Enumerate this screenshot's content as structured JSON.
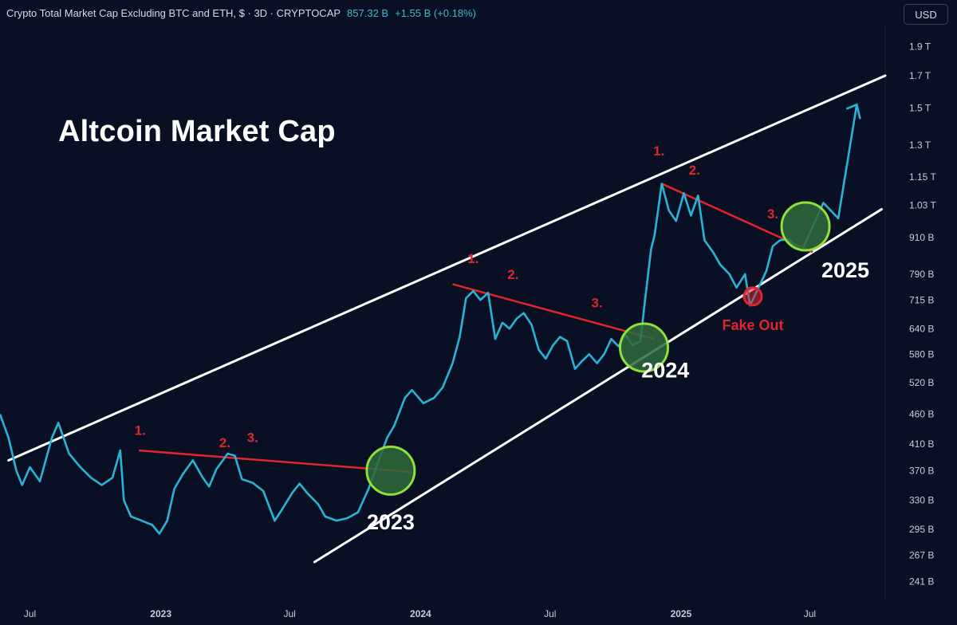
{
  "header": {
    "symbol": "Crypto Total Market Cap Excluding BTC and ETH, $ · 3D · CRYPTOCAP",
    "price": "857.32 B",
    "change": "+1.55 B (+0.18%)"
  },
  "currency_button": "USD",
  "colors": {
    "background": "#0a1023",
    "price_line": "#2bb3d6",
    "channel": "#ffffff",
    "resistance": "#e02531",
    "green_circle_fill": "#2f6b3c",
    "green_circle_stroke": "#8ee03a",
    "red_circle": "#e02531",
    "axis_text": "#c9ced9"
  },
  "chart_data": {
    "type": "line",
    "title": "Altcoin Market Cap",
    "y_scale": "log",
    "ylim": [
      225,
      2050
    ],
    "y_ticks": [
      {
        "value": 1900,
        "label": "1.9 T"
      },
      {
        "value": 1700,
        "label": "1.7 T"
      },
      {
        "value": 1500,
        "label": "1.5 T"
      },
      {
        "value": 1300,
        "label": "1.3 T"
      },
      {
        "value": 1150,
        "label": "1.15 T"
      },
      {
        "value": 1030,
        "label": "1.03 T"
      },
      {
        "value": 910,
        "label": "910 B"
      },
      {
        "value": 790,
        "label": "790 B"
      },
      {
        "value": 715,
        "label": "715 B"
      },
      {
        "value": 640,
        "label": "640 B"
      },
      {
        "value": 580,
        "label": "580 B"
      },
      {
        "value": 520,
        "label": "520 B"
      },
      {
        "value": 460,
        "label": "460 B"
      },
      {
        "value": 410,
        "label": "410 B"
      },
      {
        "value": 370,
        "label": "370 B"
      },
      {
        "value": 330,
        "label": "330 B"
      },
      {
        "value": 295,
        "label": "295 B"
      },
      {
        "value": 267,
        "label": "267 B"
      },
      {
        "value": 241,
        "label": "241 B"
      }
    ],
    "xlim": [
      "2022-05-20",
      "2025-10-15"
    ],
    "x_ticks": [
      {
        "date": "2022-07-01",
        "label": "Jul"
      },
      {
        "date": "2023-01-01",
        "label": "2023"
      },
      {
        "date": "2023-07-01",
        "label": "Jul"
      },
      {
        "date": "2024-01-01",
        "label": "2024"
      },
      {
        "date": "2024-07-01",
        "label": "Jul"
      },
      {
        "date": "2025-01-01",
        "label": "2025"
      },
      {
        "date": "2025-07-01",
        "label": "Jul"
      }
    ],
    "series": [
      {
        "values": [
          [
            "2022-05-20",
            460
          ],
          [
            "2022-06-01",
            420
          ],
          [
            "2022-06-12",
            370
          ],
          [
            "2022-06-20",
            350
          ],
          [
            "2022-07-01",
            375
          ],
          [
            "2022-07-15",
            355
          ],
          [
            "2022-08-01",
            420
          ],
          [
            "2022-08-10",
            445
          ],
          [
            "2022-08-25",
            395
          ],
          [
            "2022-09-10",
            375
          ],
          [
            "2022-09-25",
            360
          ],
          [
            "2022-10-10",
            350
          ],
          [
            "2022-10-25",
            360
          ],
          [
            "2022-11-05",
            400
          ],
          [
            "2022-11-10",
            330
          ],
          [
            "2022-11-20",
            310
          ],
          [
            "2022-12-05",
            305
          ],
          [
            "2022-12-20",
            300
          ],
          [
            "2022-12-30",
            290
          ],
          [
            "2023-01-10",
            305
          ],
          [
            "2023-01-20",
            345
          ],
          [
            "2023-02-01",
            365
          ],
          [
            "2023-02-15",
            385
          ],
          [
            "2023-03-01",
            360
          ],
          [
            "2023-03-10",
            348
          ],
          [
            "2023-03-20",
            372
          ],
          [
            "2023-04-05",
            395
          ],
          [
            "2023-04-15",
            392
          ],
          [
            "2023-04-25",
            358
          ],
          [
            "2023-05-10",
            353
          ],
          [
            "2023-05-25",
            342
          ],
          [
            "2023-06-10",
            305
          ],
          [
            "2023-06-20",
            318
          ],
          [
            "2023-07-05",
            340
          ],
          [
            "2023-07-15",
            352
          ],
          [
            "2023-07-25",
            340
          ],
          [
            "2023-08-10",
            325
          ],
          [
            "2023-08-20",
            310
          ],
          [
            "2023-09-05",
            305
          ],
          [
            "2023-09-20",
            308
          ],
          [
            "2023-10-05",
            315
          ],
          [
            "2023-10-20",
            345
          ],
          [
            "2023-11-05",
            390
          ],
          [
            "2023-11-15",
            420
          ],
          [
            "2023-11-25",
            440
          ],
          [
            "2023-12-10",
            490
          ],
          [
            "2023-12-20",
            505
          ],
          [
            "2024-01-05",
            480
          ],
          [
            "2024-01-20",
            490
          ],
          [
            "2024-02-01",
            510
          ],
          [
            "2024-02-15",
            560
          ],
          [
            "2024-02-25",
            620
          ],
          [
            "2024-03-05",
            720
          ],
          [
            "2024-03-15",
            740
          ],
          [
            "2024-03-25",
            715
          ],
          [
            "2024-04-05",
            735
          ],
          [
            "2024-04-15",
            615
          ],
          [
            "2024-04-25",
            655
          ],
          [
            "2024-05-05",
            640
          ],
          [
            "2024-05-15",
            665
          ],
          [
            "2024-05-25",
            680
          ],
          [
            "2024-06-05",
            650
          ],
          [
            "2024-06-15",
            590
          ],
          [
            "2024-06-25",
            570
          ],
          [
            "2024-07-05",
            600
          ],
          [
            "2024-07-15",
            620
          ],
          [
            "2024-07-25",
            610
          ],
          [
            "2024-08-05",
            548
          ],
          [
            "2024-08-15",
            565
          ],
          [
            "2024-08-25",
            580
          ],
          [
            "2024-09-05",
            560
          ],
          [
            "2024-09-15",
            580
          ],
          [
            "2024-09-25",
            615
          ],
          [
            "2024-10-05",
            598
          ],
          [
            "2024-10-15",
            625
          ],
          [
            "2024-10-25",
            600
          ],
          [
            "2024-11-05",
            610
          ],
          [
            "2024-11-10",
            690
          ],
          [
            "2024-11-20",
            870
          ],
          [
            "2024-11-25",
            920
          ],
          [
            "2024-12-05",
            1120
          ],
          [
            "2024-12-15",
            1010
          ],
          [
            "2024-12-25",
            970
          ],
          [
            "2025-01-05",
            1080
          ],
          [
            "2025-01-15",
            990
          ],
          [
            "2025-01-25",
            1070
          ],
          [
            "2025-02-03",
            900
          ],
          [
            "2025-02-15",
            860
          ],
          [
            "2025-02-25",
            820
          ],
          [
            "2025-03-10",
            790
          ],
          [
            "2025-03-20",
            750
          ],
          [
            "2025-04-01",
            790
          ],
          [
            "2025-04-08",
            700
          ],
          [
            "2025-04-20",
            750
          ],
          [
            "2025-05-01",
            800
          ],
          [
            "2025-05-10",
            880
          ],
          [
            "2025-05-20",
            900
          ],
          [
            "2025-06-01",
            905
          ],
          [
            "2025-06-10",
            880
          ],
          [
            "2025-06-20",
            865
          ]
        ]
      },
      {
        "values": [
          [
            "2025-06-20",
            865
          ],
          [
            "2025-07-20",
            1040
          ],
          [
            "2025-08-10",
            980
          ],
          [
            "2025-09-05",
            1520
          ]
        ]
      }
    ],
    "channel_lines": [
      {
        "x": [
          "2022-06-01",
          "2025-10-15"
        ],
        "y": [
          385,
          1700
        ]
      },
      {
        "x": [
          "2023-08-05",
          "2025-10-10"
        ],
        "y": [
          260,
          1015
        ]
      }
    ],
    "resistance_lines": [
      {
        "x": [
          "2022-12-01",
          "2023-12-20"
        ],
        "y": [
          400,
          368
        ]
      },
      {
        "x": [
          "2024-02-15",
          "2024-11-25"
        ],
        "y": [
          760,
          615
        ]
      },
      {
        "x": [
          "2024-12-05",
          "2025-07-05"
        ],
        "y": [
          1120,
          860
        ]
      }
    ],
    "annotations": [
      {
        "text": "1.",
        "x": "2022-12-03",
        "y": 425
      },
      {
        "text": "2.",
        "x": "2023-04-01",
        "y": 405
      },
      {
        "text": "3.",
        "x": "2023-05-10",
        "y": 413
      },
      {
        "text": "1.",
        "x": "2024-03-15",
        "y": 825
      },
      {
        "text": "2.",
        "x": "2024-05-10",
        "y": 775
      },
      {
        "text": "3.",
        "x": "2024-09-05",
        "y": 695
      },
      {
        "text": "1.",
        "x": "2024-12-01",
        "y": 1250
      },
      {
        "text": "2.",
        "x": "2025-01-20",
        "y": 1160
      },
      {
        "text": "3.",
        "x": "2025-05-10",
        "y": 980
      },
      {
        "text": "Fake Out",
        "x": "2025-04-12",
        "y": 637
      },
      {
        "text": "2023",
        "x": "2023-11-20",
        "y": 295
      },
      {
        "text": "2024",
        "x": "2024-12-10",
        "y": 530
      },
      {
        "text": "2025",
        "x": "2025-08-20",
        "y": 780
      }
    ],
    "markers": [
      {
        "kind": "green-circle",
        "x": "2023-11-20",
        "y": 370
      },
      {
        "kind": "green-circle",
        "x": "2024-11-10",
        "y": 595
      },
      {
        "kind": "green-circle",
        "x": "2025-06-25",
        "y": 950
      },
      {
        "kind": "red-circle",
        "x": "2025-04-12",
        "y": 725
      }
    ]
  }
}
